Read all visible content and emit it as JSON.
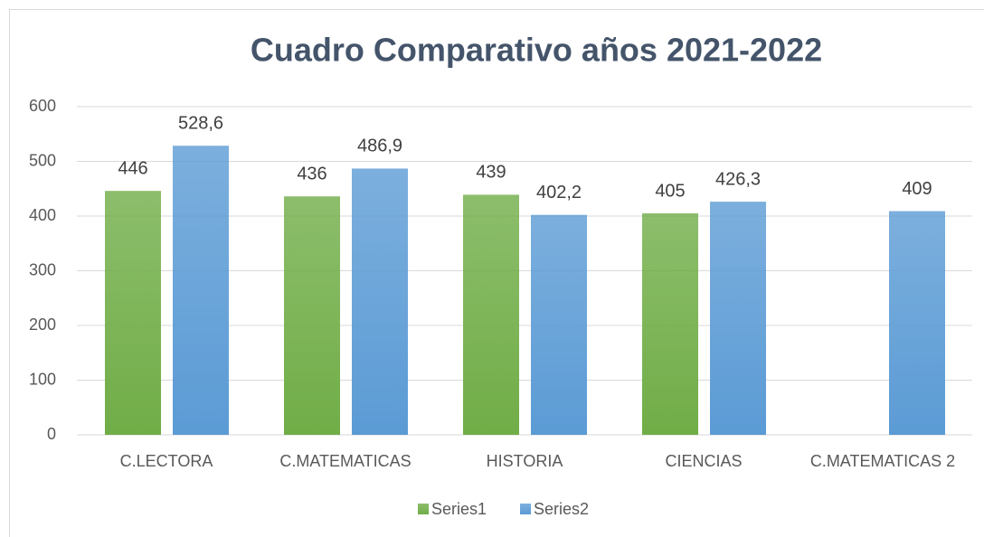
{
  "chart_data": {
    "type": "bar",
    "title": "Cuadro Comparativo años 2021-2022",
    "categories": [
      "C.LECTORA",
      "C.MATEMATICAS",
      "HISTORIA",
      "CIENCIAS",
      "C.MATEMATICAS 2"
    ],
    "series": [
      {
        "name": "Series1",
        "color": "#70ad47",
        "values": [
          446,
          436,
          439,
          405,
          null
        ],
        "value_labels": [
          "446",
          "436",
          "439",
          "405",
          null
        ]
      },
      {
        "name": "Series2",
        "color": "#5b9bd5",
        "values": [
          528.6,
          486.9,
          402.2,
          426.3,
          409
        ],
        "value_labels": [
          "528,6",
          "486,9",
          "402,2",
          "426,3",
          "409"
        ]
      }
    ],
    "ylim": [
      0,
      600
    ],
    "yticks": [
      0,
      100,
      200,
      300,
      400,
      500,
      600
    ],
    "grid": true,
    "legend": "bottom"
  }
}
